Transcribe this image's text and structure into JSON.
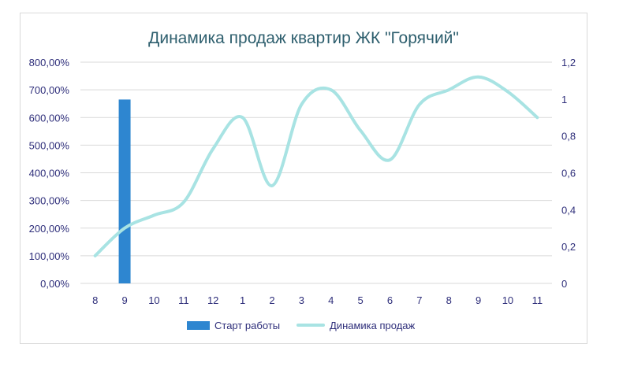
{
  "chart_data": {
    "type": "bar+line",
    "title": "Динамика продаж квартир ЖК \"Горячий\"",
    "categories": [
      "8",
      "9",
      "10",
      "11",
      "12",
      "1",
      "2",
      "3",
      "4",
      "5",
      "6",
      "7",
      "8",
      "9",
      "10",
      "11"
    ],
    "left_axis": {
      "ylim": [
        0,
        8
      ],
      "tick_labels": [
        "0,00%",
        "100,00%",
        "200,00%",
        "300,00%",
        "400,00%",
        "500,00%",
        "600,00%",
        "700,00%",
        "800,00%"
      ]
    },
    "right_axis": {
      "ylim": [
        0,
        1.2
      ],
      "tick_labels": [
        "0",
        "0,2",
        "0,4",
        "0,6",
        "0,8",
        "1",
        "1,2"
      ]
    },
    "series": [
      {
        "name": "Старт работы",
        "kind": "bar",
        "axis": "left",
        "color": "#2e86d0",
        "values": [
          null,
          6.65,
          null,
          null,
          null,
          null,
          null,
          null,
          null,
          null,
          null,
          null,
          null,
          null,
          null,
          null
        ]
      },
      {
        "name": "Динамика продаж",
        "kind": "line",
        "axis": "right",
        "color": "#a8e3e3",
        "values": [
          0.15,
          0.3,
          0.37,
          0.44,
          0.73,
          0.9,
          0.53,
          0.97,
          1.05,
          0.83,
          0.67,
          0.97,
          1.05,
          1.12,
          1.04,
          0.9
        ]
      }
    ],
    "legend": [
      "Старт работы",
      "Динамика продаж"
    ],
    "legend_position": "bottom",
    "grid": true
  }
}
